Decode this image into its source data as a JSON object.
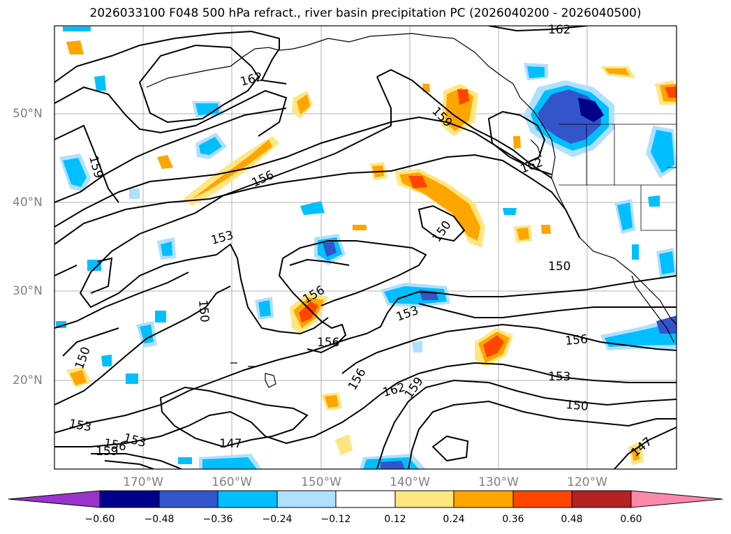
{
  "title": "2026033100 F048 500 hPa refract., river basin precipitation PC (2026040200 - 2026040500)",
  "map": {
    "lat_labels": [
      "50°N",
      "40°N",
      "30°N",
      "20°N"
    ],
    "lon_labels": [
      "170°W",
      "160°W",
      "150°W",
      "140°W",
      "130°W",
      "120°W"
    ],
    "contour_labels": [
      "162",
      "162",
      "162",
      "159",
      "159",
      "159",
      "159",
      "156",
      "156",
      "156",
      "156",
      "156",
      "156",
      "153",
      "153",
      "153",
      "153",
      "153",
      "150",
      "150",
      "150",
      "150",
      "150",
      "147",
      "147",
      "162"
    ]
  },
  "colorbar": {
    "ticks": [
      "−0.60",
      "−0.48",
      "−0.36",
      "−0.24",
      "−0.12",
      "0.12",
      "0.24",
      "0.36",
      "0.48",
      "0.60"
    ],
    "colors": {
      "below": "#9933cc",
      "c1": "#00008b",
      "c2": "#3355cc",
      "c3": "#00bfff",
      "c4": "#b0e0ff",
      "c5": "#ffffff",
      "c6": "#ffe680",
      "c7": "#ffa500",
      "c8": "#ff4500",
      "c9": "#b22222",
      "above": "#ff88aa"
    }
  }
}
